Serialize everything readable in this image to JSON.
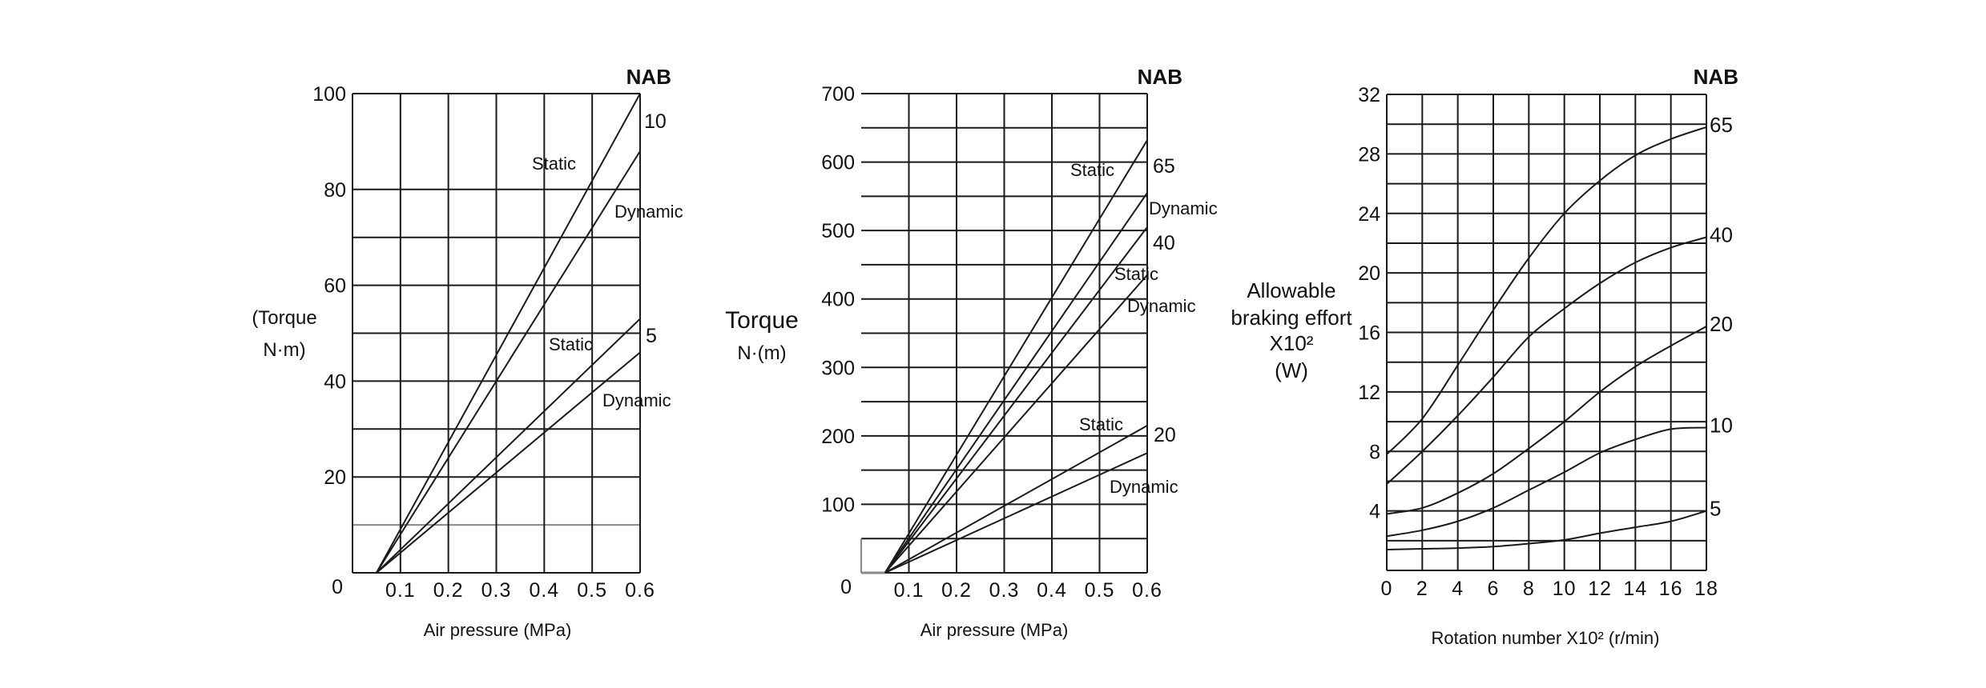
{
  "chart_data": [
    {
      "type": "line",
      "series_group_label": "NAB",
      "ylabel": [
        "(Torque",
        "N·m)"
      ],
      "xlabel": "Air pressure (MPa)",
      "xlim": [
        0,
        0.6
      ],
      "ylim": [
        0,
        100
      ],
      "x_ticks": [
        "0.1",
        "0.2",
        "0.3",
        "0.4",
        "0.5",
        "0.6"
      ],
      "y_ticks": [
        "0",
        "20",
        "40",
        "60",
        "80",
        "100"
      ],
      "grid": true,
      "series": [
        {
          "size": "10",
          "kind": "Static",
          "points": [
            [
              0.05,
              0
            ],
            [
              0.6,
              100
            ]
          ]
        },
        {
          "size": "10",
          "kind": "Dynamic",
          "points": [
            [
              0.05,
              0
            ],
            [
              0.6,
              88
            ]
          ]
        },
        {
          "size": "5",
          "kind": "Static",
          "points": [
            [
              0.05,
              0
            ],
            [
              0.6,
              53
            ]
          ]
        },
        {
          "size": "5",
          "kind": "Dynamic",
          "points": [
            [
              0.05,
              0
            ],
            [
              0.6,
              46
            ]
          ]
        }
      ],
      "annotations": [
        "10",
        "Static",
        "Dynamic",
        "Static",
        "5",
        "Dynamic"
      ]
    },
    {
      "type": "line",
      "series_group_label": "NAB",
      "ylabel": [
        "Torque",
        "N·(m)"
      ],
      "xlabel": "Air pressure (MPa)",
      "xlim": [
        0,
        0.6
      ],
      "ylim": [
        0,
        700
      ],
      "x_ticks": [
        "0.1",
        "0.2",
        "0.3",
        "0.4",
        "0.5",
        "0.6"
      ],
      "y_ticks": [
        "0",
        "100",
        "200",
        "300",
        "400",
        "500",
        "600",
        "700"
      ],
      "grid": true,
      "series": [
        {
          "size": "65",
          "kind": "Static",
          "points": [
            [
              0.05,
              0
            ],
            [
              0.6,
              632
            ]
          ]
        },
        {
          "size": "65",
          "kind": "Dynamic",
          "points": [
            [
              0.05,
              0
            ],
            [
              0.6,
              555
            ]
          ]
        },
        {
          "size": "40",
          "kind": "Static",
          "points": [
            [
              0.05,
              0
            ],
            [
              0.6,
              505
            ]
          ]
        },
        {
          "size": "40",
          "kind": "Dynamic",
          "points": [
            [
              0.05,
              0
            ],
            [
              0.6,
              435
            ]
          ]
        },
        {
          "size": "20",
          "kind": "Static",
          "points": [
            [
              0.05,
              0
            ],
            [
              0.6,
              215
            ]
          ]
        },
        {
          "size": "20",
          "kind": "Dynamic",
          "points": [
            [
              0.05,
              0
            ],
            [
              0.6,
              175
            ]
          ]
        }
      ],
      "annotations": [
        "Static",
        "65",
        "Dynamic",
        "40",
        "Static",
        "Dynamic",
        "Static",
        "20",
        "Dynamic"
      ]
    },
    {
      "type": "line",
      "series_group_label": "NAB",
      "ylabel": [
        "Allowable",
        "braking effort",
        "X10²",
        "(W)"
      ],
      "xlabel": "Rotation number X10² (r/min)",
      "xlim": [
        0,
        18
      ],
      "ylim": [
        0,
        32
      ],
      "x_ticks": [
        "0",
        "2",
        "4",
        "6",
        "8",
        "10",
        "12",
        "14",
        "16",
        "18"
      ],
      "y_ticks": [
        "4",
        "8",
        "12",
        "16",
        "20",
        "24",
        "28",
        "32"
      ],
      "grid": true,
      "series": [
        {
          "name": "65",
          "points": [
            [
              0,
              7.8
            ],
            [
              2,
              10.2
            ],
            [
              4,
              13.8
            ],
            [
              6,
              17.5
            ],
            [
              8,
              21
            ],
            [
              10,
              24
            ],
            [
              12,
              26.2
            ],
            [
              14,
              27.9
            ],
            [
              16,
              29
            ],
            [
              18,
              29.8
            ]
          ]
        },
        {
          "name": "40",
          "points": [
            [
              0,
              5.8
            ],
            [
              2,
              8
            ],
            [
              4,
              10.4
            ],
            [
              6,
              13
            ],
            [
              8,
              15.7
            ],
            [
              10,
              17.6
            ],
            [
              12,
              19.3
            ],
            [
              14,
              20.7
            ],
            [
              16,
              21.7
            ],
            [
              18,
              22.4
            ]
          ]
        },
        {
          "name": "20",
          "points": [
            [
              0,
              3.8
            ],
            [
              2,
              4.2
            ],
            [
              4,
              5.2
            ],
            [
              6,
              6.5
            ],
            [
              8,
              8.2
            ],
            [
              10,
              10
            ],
            [
              12,
              12
            ],
            [
              14,
              13.7
            ],
            [
              16,
              15.1
            ],
            [
              18,
              16.4
            ]
          ]
        },
        {
          "name": "10",
          "points": [
            [
              0,
              2.3
            ],
            [
              2,
              2.7
            ],
            [
              4,
              3.3
            ],
            [
              6,
              4.2
            ],
            [
              8,
              5.4
            ],
            [
              10,
              6.6
            ],
            [
              12,
              7.9
            ],
            [
              14,
              8.8
            ],
            [
              16,
              9.5
            ],
            [
              18,
              9.6
            ]
          ]
        },
        {
          "name": "5",
          "points": [
            [
              0,
              1.4
            ],
            [
              2,
              1.45
            ],
            [
              4,
              1.5
            ],
            [
              6,
              1.6
            ],
            [
              8,
              1.8
            ],
            [
              10,
              2.05
            ],
            [
              12,
              2.5
            ],
            [
              14,
              2.9
            ],
            [
              16,
              3.3
            ],
            [
              18,
              4.0
            ]
          ]
        }
      ]
    }
  ],
  "colors": {
    "line": "#1a1a1a",
    "grid": "#1a1a1a",
    "faint_grid": "#888888"
  }
}
